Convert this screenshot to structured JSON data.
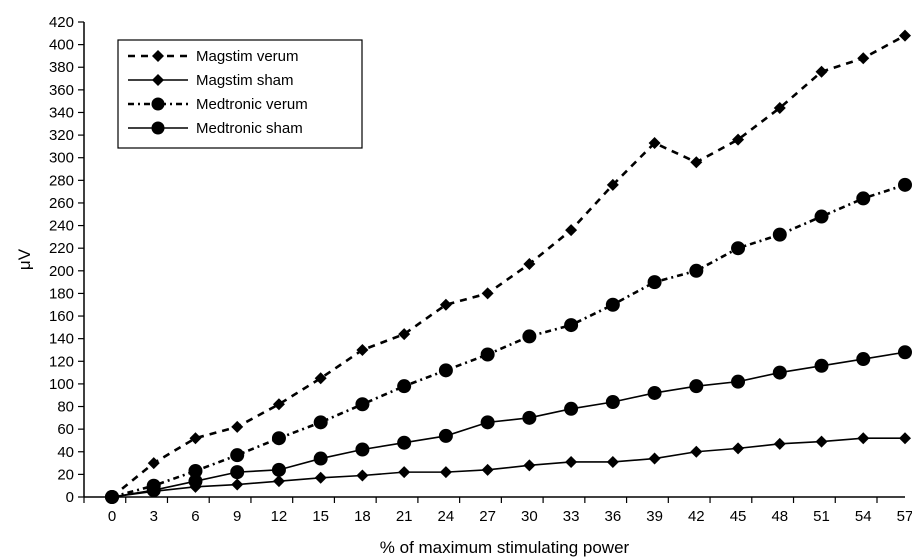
{
  "chart_data": {
    "type": "line",
    "title": "",
    "xlabel": "% of maximum stimulating power",
    "ylabel": "μV",
    "x": [
      0,
      3,
      6,
      9,
      12,
      15,
      18,
      21,
      24,
      27,
      30,
      33,
      36,
      39,
      42,
      45,
      48,
      51,
      54,
      57
    ],
    "x_ticks": [
      "0",
      "3",
      "6",
      "9",
      "12",
      "15",
      "18",
      "21",
      "24",
      "27",
      "30",
      "33",
      "36",
      "39",
      "42",
      "45",
      "48",
      "51",
      "54",
      "57"
    ],
    "ylim": [
      0,
      420
    ],
    "y_ticks": [
      "0",
      "20",
      "40",
      "60",
      "80",
      "100",
      "120",
      "140",
      "160",
      "180",
      "200",
      "220",
      "240",
      "260",
      "280",
      "300",
      "320",
      "340",
      "360",
      "380",
      "400",
      "420"
    ],
    "grid": false,
    "legend_position": "top-left",
    "series": [
      {
        "name": "Magstim verum",
        "marker": "diamond",
        "line_style": "dashed",
        "values": [
          0,
          30,
          52,
          62,
          82,
          105,
          130,
          144,
          170,
          180,
          206,
          236,
          276,
          313,
          296,
          316,
          344,
          376,
          388,
          408
        ]
      },
      {
        "name": "Magstim sham",
        "marker": "diamond",
        "line_style": "solid",
        "values": [
          0,
          5,
          9,
          11,
          14,
          17,
          19,
          22,
          22,
          24,
          28,
          31,
          31,
          34,
          40,
          43,
          47,
          49,
          52,
          52
        ]
      },
      {
        "name": "Medtronic verum",
        "marker": "circle",
        "line_style": "dash-dot",
        "values": [
          0,
          10,
          23,
          37,
          52,
          66,
          82,
          98,
          112,
          126,
          142,
          152,
          170,
          190,
          200,
          220,
          232,
          248,
          264,
          276
        ]
      },
      {
        "name": "Medtronic sham",
        "marker": "circle",
        "line_style": "solid",
        "values": [
          0,
          6,
          14,
          22,
          24,
          34,
          42,
          48,
          54,
          66,
          70,
          78,
          84,
          92,
          98,
          102,
          110,
          116,
          122,
          128
        ]
      }
    ]
  }
}
